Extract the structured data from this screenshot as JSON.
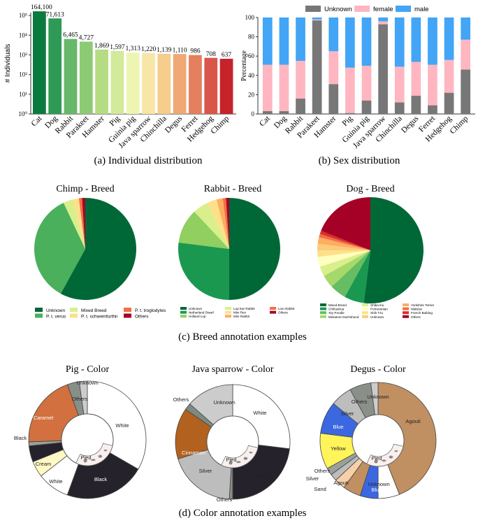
{
  "captions": {
    "a": "(a) Individual distribution",
    "b": "(b) Sex distribution",
    "c": "(c) Breed annotation examples",
    "d": "(d) Color annotation examples"
  },
  "chart_data": [
    {
      "id": "individual",
      "type": "bar",
      "title": "",
      "ylabel": "# Individuals",
      "yscale": "log",
      "ylim": [
        1,
        100000
      ],
      "yticks": [
        "10⁰",
        "10¹",
        "10²",
        "10³",
        "10⁴",
        "10⁵"
      ],
      "categories": [
        "Cat",
        "Dog",
        "Rabbit",
        "Parakeet",
        "Hamster",
        "Pig",
        "Guinia pig",
        "Java sparrow",
        "Chinchilla",
        "Degus",
        "Ferret",
        "Hedgehog",
        "Chimp"
      ],
      "values": [
        164100,
        71613,
        6465,
        4727,
        1869,
        1597,
        1313,
        1220,
        1139,
        1110,
        986,
        708,
        637
      ],
      "labels": [
        "164,100",
        "71,613",
        "6,465",
        "4,727",
        "1,869",
        "1,597",
        "1,313",
        "1,220",
        "1,139",
        "1,110",
        "986",
        "708",
        "637"
      ],
      "colors": [
        "#0b7a3e",
        "#2f9a55",
        "#67b86a",
        "#8dca74",
        "#b6dc83",
        "#d3ea9b",
        "#eef5b3",
        "#f8e6a6",
        "#f6cd8c",
        "#f0a877",
        "#e57f5f",
        "#d9574a",
        "#c6232b"
      ]
    },
    {
      "id": "sex",
      "type": "bar",
      "stacked": true,
      "ylabel": "Percentage",
      "ylim": [
        0,
        100
      ],
      "yticks": [
        "0",
        "20",
        "40",
        "60",
        "80",
        "100"
      ],
      "legend": "top",
      "categories": [
        "Cat",
        "Dog",
        "Rabbit",
        "Parakeet",
        "Hamster",
        "Pig",
        "Guinia pig",
        "Java sparrow",
        "Chinchilla",
        "Degus",
        "Ferret",
        "Hedgehog",
        "Chimp"
      ],
      "series": [
        {
          "name": "Unknown",
          "color": "#777777",
          "values": [
            3,
            3,
            16,
            97,
            31,
            1,
            14,
            93,
            12,
            19,
            9,
            22,
            46
          ]
        },
        {
          "name": "female",
          "color": "#ffb6c1",
          "values": [
            48,
            48,
            39,
            1,
            34,
            47,
            36,
            3,
            37,
            35,
            42,
            34,
            31
          ]
        },
        {
          "name": "male",
          "color": "#42a5f5",
          "values": [
            49,
            49,
            45,
            2,
            35,
            52,
            50,
            4,
            51,
            46,
            49,
            44,
            23
          ]
        }
      ]
    },
    {
      "id": "chimp-breed",
      "type": "pie",
      "title": "Chimp - Breed",
      "slices": [
        {
          "label": "Unknown",
          "value": 58,
          "color": "#006837"
        },
        {
          "label": "P. t. verus",
          "value": 35,
          "color": "#4bb05c"
        },
        {
          "label": "Mixed Breed",
          "value": 3,
          "color": "#d9ef8b"
        },
        {
          "label": "P. t. schweinfurthii",
          "value": 2,
          "color": "#fee08b"
        },
        {
          "label": "P. t. troglodytes",
          "value": 1,
          "color": "#f46d43"
        },
        {
          "label": "Others",
          "value": 1,
          "color": "#a50026"
        }
      ],
      "legend": [
        "Unknown",
        "P. t. verus",
        "Mixed Breed",
        "P. t. schweinfurthii",
        "P. t. troglodytes",
        "Others"
      ],
      "legend_colors": [
        "#006837",
        "#4bb05c",
        "#d9ef8b",
        "#fee08b",
        "#f46d43",
        "#a50026"
      ]
    },
    {
      "id": "rabbit-breed",
      "type": "pie",
      "title": "Rabbit - Breed",
      "slices": [
        {
          "label": "Unknown",
          "value": 50,
          "color": "#006837"
        },
        {
          "label": "Netherland Dwarf",
          "value": 27,
          "color": "#1a9850"
        },
        {
          "label": "Holland Lop",
          "value": 11,
          "color": "#91cf60"
        },
        {
          "label": "Lop Ear Rabbit",
          "value": 5,
          "color": "#d9ef8b"
        },
        {
          "label": "Mini Rex",
          "value": 3,
          "color": "#fee08b"
        },
        {
          "label": "Mini Rabbit",
          "value": 2,
          "color": "#fdae61"
        },
        {
          "label": "Lion Rabbit",
          "value": 1,
          "color": "#f46d43"
        },
        {
          "label": "Others",
          "value": 1,
          "color": "#a50026"
        }
      ],
      "legend": [
        "Unknown",
        "Netherland Dwarf",
        "Holland Lop",
        "Lop Ear Rabbit",
        "Mini Rex",
        "Mini Rabbit",
        "Lion Rabbit",
        "Others"
      ],
      "legend_colors": [
        "#006837",
        "#1a9850",
        "#91cf60",
        "#d9ef8b",
        "#fee08b",
        "#fdae61",
        "#f46d43",
        "#a50026"
      ]
    },
    {
      "id": "dog-breed",
      "type": "pie",
      "title": "Dog - Breed",
      "slices": [
        {
          "label": "Mixed Breed",
          "value": 52,
          "color": "#006837"
        },
        {
          "label": "Chihuahua",
          "value": 6,
          "color": "#1a9850"
        },
        {
          "label": "Toy Poodle",
          "value": 5,
          "color": "#66bd63"
        },
        {
          "label": "Miniature Dachshund",
          "value": 4,
          "color": "#a6d96a"
        },
        {
          "label": "Shiba Inu",
          "value": 3,
          "color": "#d9ef8b"
        },
        {
          "label": "Pomeranian",
          "value": 3,
          "color": "#ffffbf"
        },
        {
          "label": "Shih Tzu",
          "value": 2,
          "color": "#fee08b"
        },
        {
          "label": "Unknown",
          "value": 2,
          "color": "#fdcb7a"
        },
        {
          "label": "Yorkshire Terrier",
          "value": 2,
          "color": "#fdae61"
        },
        {
          "label": "Maltese",
          "value": 1,
          "color": "#f46d43"
        },
        {
          "label": "French Bulldog",
          "value": 1,
          "color": "#d73027"
        },
        {
          "label": "Others",
          "value": 19,
          "color": "#a50026"
        }
      ],
      "legend": [
        "Mixed Breed",
        "Chihuahua",
        "Toy Poodle",
        "Miniature Dachshund",
        "Shiba Inu",
        "Pomeranian",
        "Shih Tzu",
        "Unknown",
        "Yorkshire Terrier",
        "Maltese",
        "French Bulldog",
        "Others"
      ],
      "legend_colors": [
        "#006837",
        "#1a9850",
        "#66bd63",
        "#a6d96a",
        "#d9ef8b",
        "#ffffbf",
        "#fee08b",
        "#fdcb7a",
        "#fdae61",
        "#f46d43",
        "#d73027",
        "#a50026"
      ]
    },
    {
      "id": "pig-color",
      "type": "pie",
      "donut": true,
      "title": "Pig - Color",
      "slices": [
        {
          "label": "White",
          "value": 30,
          "color": "#ffffff"
        },
        {
          "label": "Black",
          "value": 20,
          "color": "#25222b"
        },
        {
          "label": "White",
          "value": 8,
          "color": "#ffffff"
        },
        {
          "label": "Cream",
          "value": 4,
          "color": "#fff9c4"
        },
        {
          "label": "Black",
          "value": 4,
          "color": "#25222b"
        },
        {
          "label": "Others",
          "value": 1,
          "color": "#9aa09a"
        },
        {
          "label": "Caramel",
          "value": 18,
          "color": "#d2703f"
        },
        {
          "label": "Others",
          "value": 3,
          "color": "#888e88"
        },
        {
          "label": "Unknown",
          "value": 2,
          "color": "#cccccc"
        }
      ],
      "inner_label": "Pied"
    },
    {
      "id": "java-sparrow-color",
      "type": "pie",
      "donut": true,
      "title": "Java sparrow - Color",
      "slices": [
        {
          "label": "White",
          "value": 28,
          "color": "#ffffff"
        },
        {
          "label": "Black",
          "value": 24,
          "color": "#25222b"
        },
        {
          "label": "Others",
          "value": 1,
          "color": "#888e88"
        },
        {
          "label": "Silver",
          "value": 20,
          "color": "#bdbdbd"
        },
        {
          "label": "Cinnamon",
          "value": 15,
          "color": "#b2611e"
        },
        {
          "label": "Others",
          "value": 2,
          "color": "#7d8a80"
        },
        {
          "label": "Unknown",
          "value": 14,
          "color": "#cccccc"
        }
      ],
      "inner_label": "Pied"
    },
    {
      "id": "degus-color",
      "type": "pie",
      "donut": true,
      "title": "Degus - Color",
      "slices": [
        {
          "label": "Agouti",
          "value": 44,
          "color": "#c08f62"
        },
        {
          "label": "Unknown",
          "value": 6,
          "color": "#ffffff"
        },
        {
          "label": "Blue",
          "value": 5,
          "color": "#3b68e0"
        },
        {
          "label": "Agouti",
          "value": 5,
          "color": "#c08f62"
        },
        {
          "label": "Sand",
          "value": 3,
          "color": "#f7cfa8"
        },
        {
          "label": "Silver",
          "value": 2,
          "color": "#bdbdbd"
        },
        {
          "label": "Others",
          "value": 2,
          "color": "#9aa09a"
        },
        {
          "label": "Yellow",
          "value": 10,
          "color": "#fff45a"
        },
        {
          "label": "Blue",
          "value": 9,
          "color": "#3b68e0"
        },
        {
          "label": "Silver",
          "value": 6,
          "color": "#bdbdbd"
        },
        {
          "label": "Others",
          "value": 6,
          "color": "#8a9088"
        },
        {
          "label": "Unknown",
          "value": 2,
          "color": "#cccccc"
        }
      ],
      "inner_label": "Pied"
    }
  ]
}
